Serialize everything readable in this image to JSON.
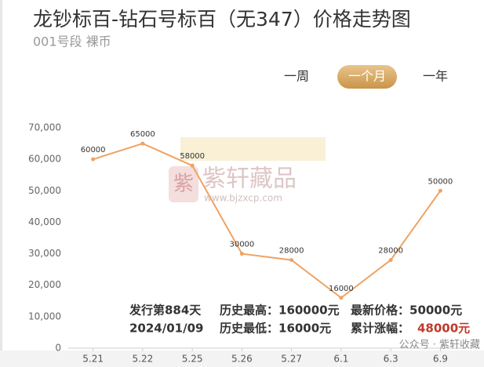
{
  "chart_data": {
    "type": "line",
    "title": "龙钞标百-钻石号标百（无347）价格走势图",
    "subtitle": "001号段 裸币",
    "tabs": [
      "一周",
      "一个月",
      "一年"
    ],
    "active_tab": 1,
    "categories": [
      "5.21",
      "5.22",
      "5.25",
      "5.26",
      "5.27",
      "6.1",
      "6.3",
      "6.9"
    ],
    "values": [
      60000,
      65000,
      58000,
      30000,
      28000,
      16000,
      28000,
      50000
    ],
    "color": "#f0a262",
    "ylim": [
      0,
      70000
    ],
    "yticks": [
      0,
      {
        "value": 10000,
        "label": "10,000"
      },
      {
        "value": 20000,
        "label": "20,000"
      },
      {
        "value": 30000,
        "label": "30,000"
      },
      {
        "value": 40000,
        "label": "40,000"
      },
      {
        "value": 50000,
        "label": "50,000"
      },
      {
        "value": 60000,
        "label": "60,000"
      },
      {
        "value": 70000,
        "label": "70,000"
      }
    ],
    "grid": false,
    "stats": {
      "days": "发行第884天",
      "date": "2024/01/09",
      "high": "历史最高：160000元",
      "low": "历史最低：16000元",
      "latest": "最新价格：50000元",
      "change_label": "累计涨幅：",
      "change_value": "48000元"
    },
    "watermark": {
      "brand": "紫轩藏品",
      "site": "www.bjzxcp.com",
      "account": "公众号 · 紫轩收藏"
    }
  }
}
